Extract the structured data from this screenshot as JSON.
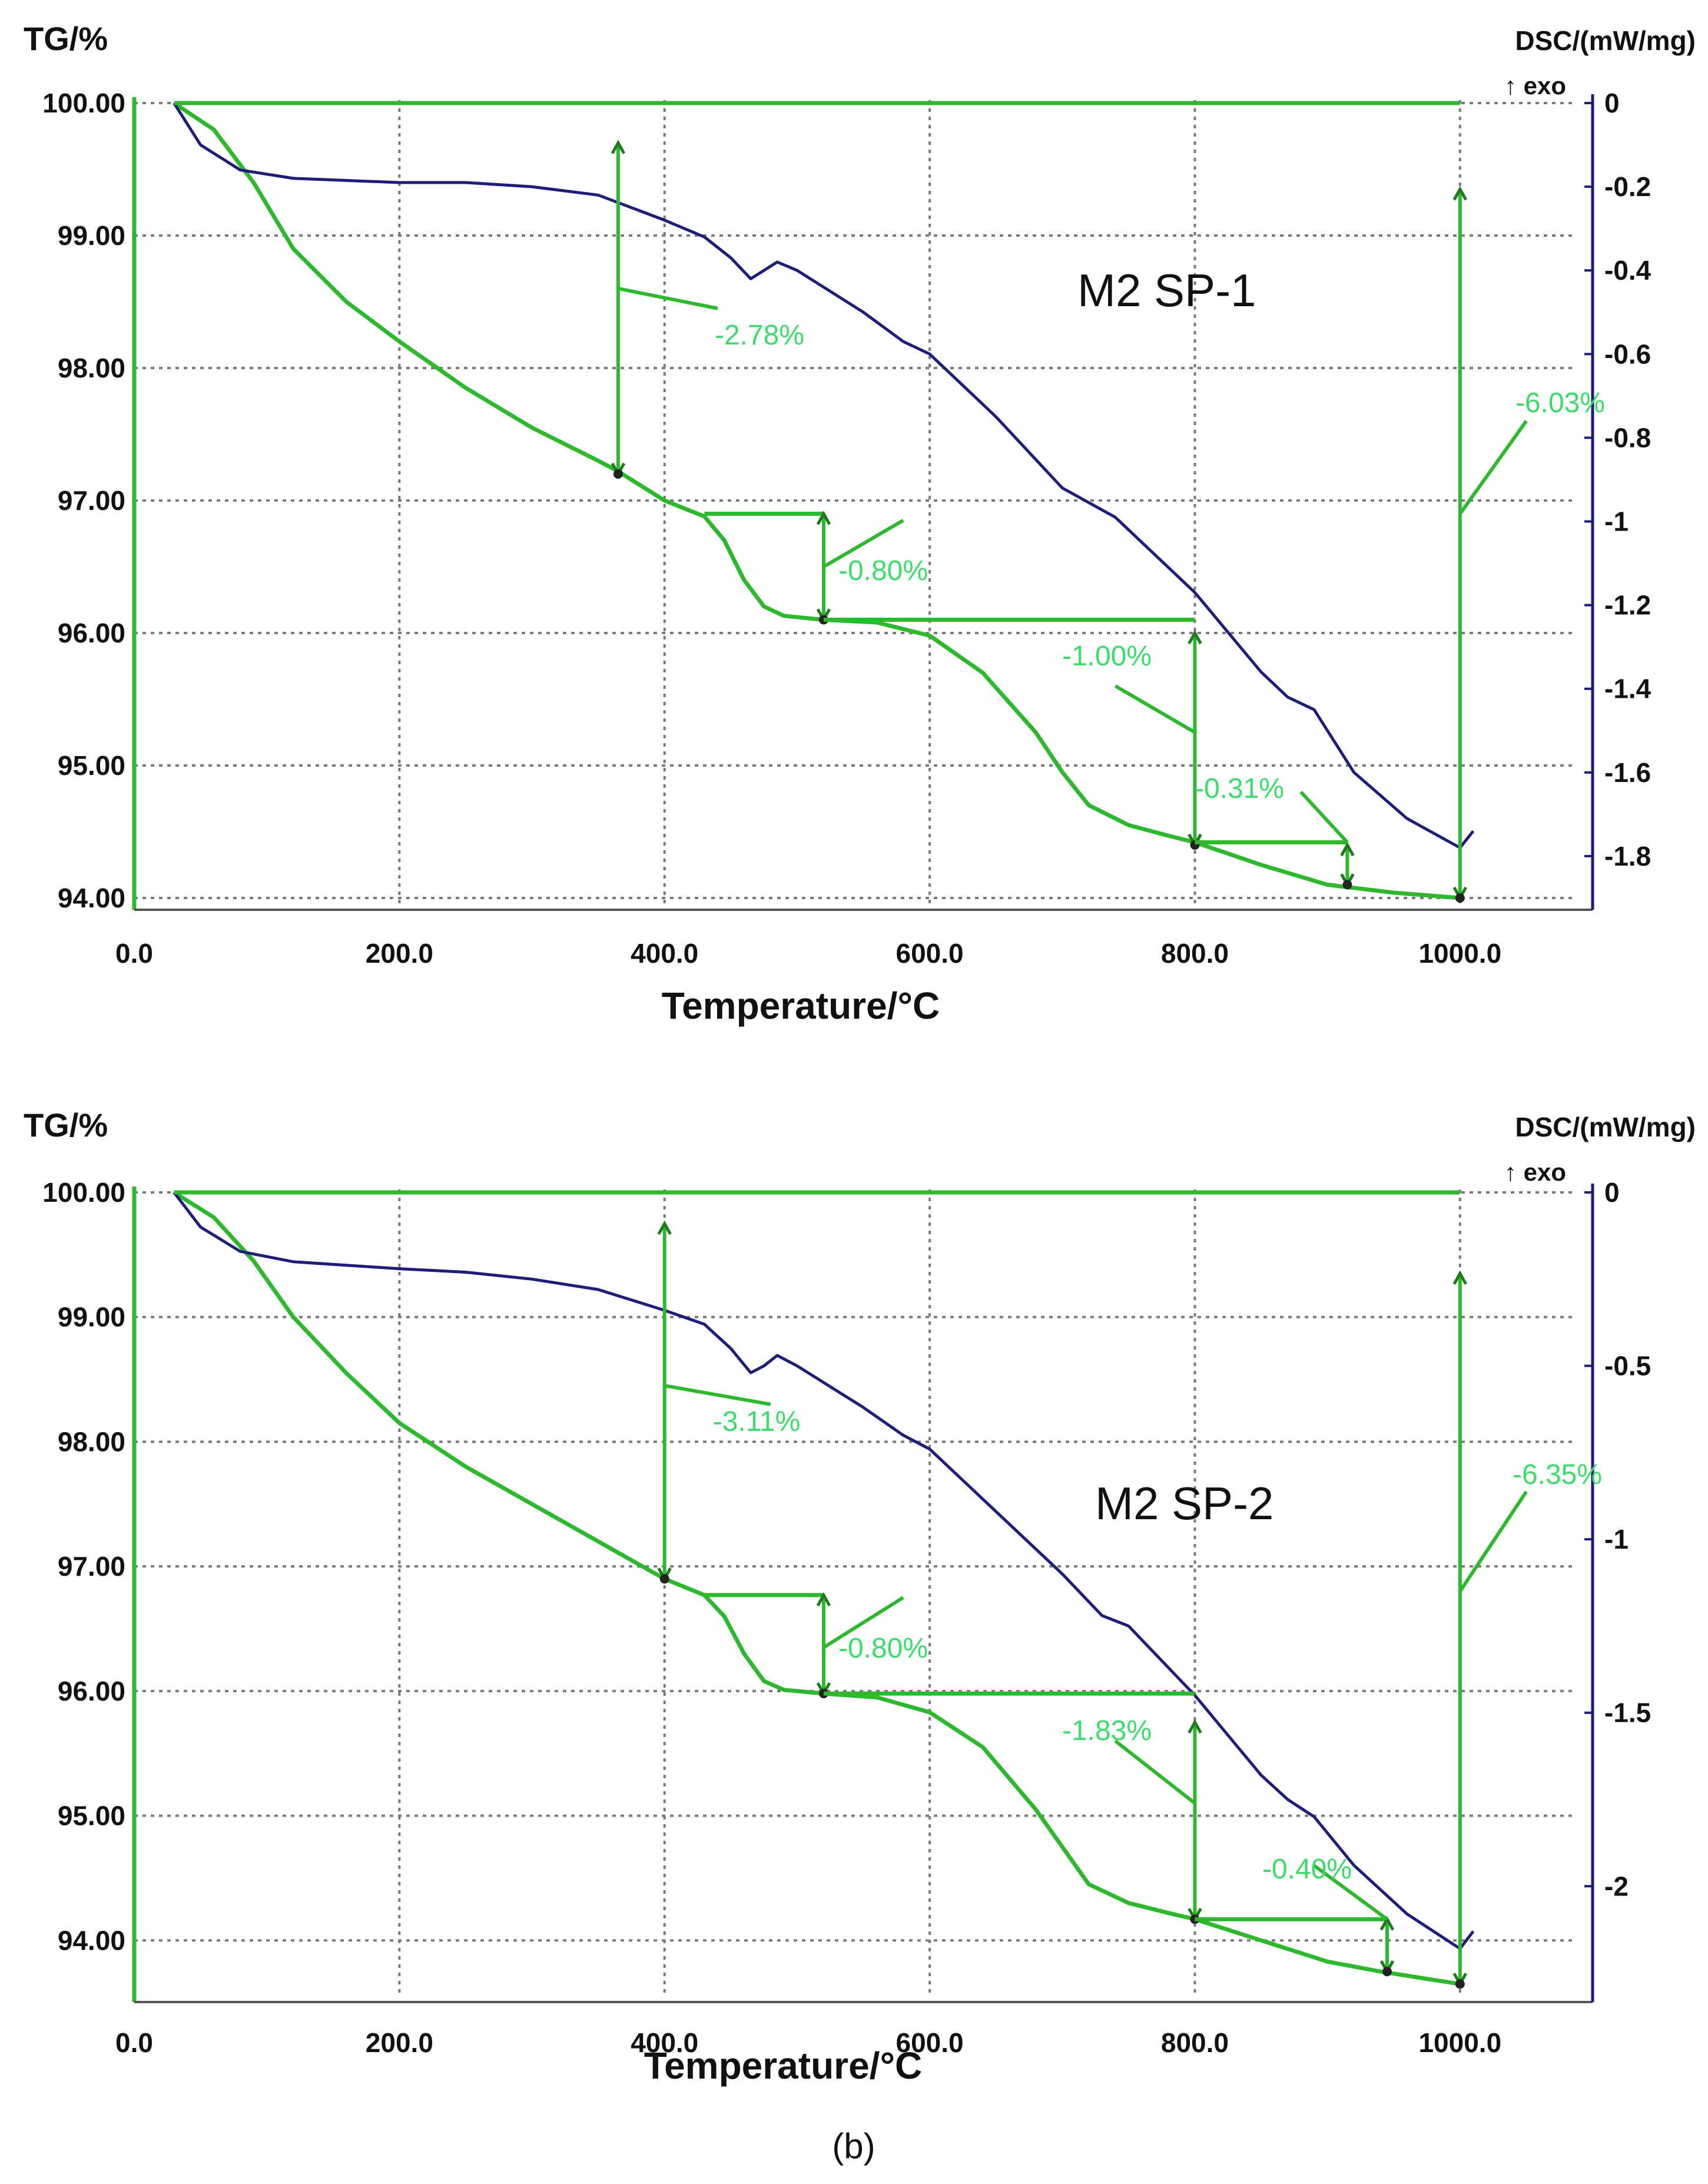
{
  "figure": {
    "label": "(b)"
  },
  "colors": {
    "tg": "#2eb82e",
    "tg_dark": "#1f7a1f",
    "dsc": "#1e1e7a",
    "annot": "#3ddc6a",
    "grid": "#7a7a7a"
  },
  "chart_data": [
    {
      "type": "line",
      "title": "M2 SP-1",
      "xlabel": "Temperature/°C",
      "ylabel_left": "TG/%",
      "ylabel_right": "DSC/(mW/mg)",
      "exo_label": "↑ exo",
      "xlim": [
        0,
        1100
      ],
      "ylim_left": [
        94.0,
        100.0
      ],
      "ylim_right": [
        -1.9,
        0
      ],
      "x_ticks": [
        0,
        200,
        400,
        600,
        800,
        1000
      ],
      "x_tick_labels": [
        "0.0",
        "200.0",
        "400.0",
        "600.0",
        "800.0",
        "1000.0"
      ],
      "y_left_ticks": [
        100,
        99,
        98,
        97,
        96,
        95,
        94
      ],
      "y_left_tick_labels": [
        "100.00",
        "99.00",
        "98.00",
        "97.00",
        "96.00",
        "95.00",
        "94.00"
      ],
      "y_right_ticks": [
        0,
        -0.2,
        -0.4,
        -0.6,
        -0.8,
        -1.0,
        -1.2,
        -1.4,
        -1.6,
        -1.8
      ],
      "y_right_tick_labels": [
        "0",
        "-0.2",
        "-0.4",
        "-0.6",
        "-0.8",
        "-1",
        "-1.2",
        "-1.4",
        "-1.6",
        "-1.8"
      ],
      "series": [
        {
          "name": "TG",
          "axis": "left",
          "x": [
            30,
            60,
            90,
            120,
            160,
            200,
            250,
            300,
            350,
            365,
            400,
            430,
            445,
            460,
            475,
            490,
            510,
            520,
            560,
            600,
            640,
            680,
            700,
            720,
            750,
            780,
            800,
            850,
            900,
            950,
            1000
          ],
          "y": [
            100.0,
            99.8,
            99.4,
            98.9,
            98.5,
            98.2,
            97.85,
            97.55,
            97.3,
            97.22,
            97.0,
            96.88,
            96.7,
            96.4,
            96.2,
            96.13,
            96.11,
            96.1,
            96.08,
            95.98,
            95.7,
            95.25,
            94.95,
            94.7,
            94.55,
            94.47,
            94.42,
            94.25,
            94.1,
            94.04,
            94.0
          ]
        },
        {
          "name": "DSC",
          "axis": "right",
          "x": [
            30,
            50,
            80,
            120,
            200,
            250,
            300,
            350,
            400,
            430,
            450,
            465,
            475,
            485,
            500,
            550,
            580,
            600,
            650,
            700,
            740,
            800,
            850,
            870,
            890,
            920,
            960,
            1000,
            1010
          ],
          "y": [
            0,
            -0.1,
            -0.16,
            -0.18,
            -0.19,
            -0.19,
            -0.2,
            -0.22,
            -0.28,
            -0.32,
            -0.37,
            -0.42,
            -0.4,
            -0.38,
            -0.4,
            -0.5,
            -0.57,
            -0.6,
            -0.75,
            -0.92,
            -0.99,
            -1.17,
            -1.36,
            -1.42,
            -1.45,
            -1.6,
            -1.71,
            -1.78,
            -1.74
          ]
        }
      ],
      "annotations": [
        "-2.78%",
        "-0.80%",
        "-1.00%",
        "-0.31%",
        "-6.03%"
      ]
    },
    {
      "type": "line",
      "title": "M2 SP-2",
      "xlabel": "Temperature/°C",
      "ylabel_left": "TG/%",
      "ylabel_right": "DSC/(mW/mg)",
      "exo_label": "↑ exo",
      "xlim": [
        0,
        1100
      ],
      "ylim_left": [
        93.6,
        100.0
      ],
      "ylim_right": [
        -2.3,
        0
      ],
      "x_ticks": [
        0,
        200,
        400,
        600,
        800,
        1000
      ],
      "x_tick_labels": [
        "0.0",
        "200.0",
        "400.0",
        "600.0",
        "800.0",
        "1000.0"
      ],
      "y_left_ticks": [
        100,
        99,
        98,
        97,
        96,
        95,
        94
      ],
      "y_left_tick_labels": [
        "100.00",
        "99.00",
        "98.00",
        "97.00",
        "96.00",
        "95.00",
        "94.00"
      ],
      "y_right_ticks": [
        0,
        -0.5,
        -1.0,
        -1.5,
        -2.0
      ],
      "y_right_tick_labels": [
        "0",
        "-0.5",
        "-1",
        "-1.5",
        "-2"
      ],
      "series": [
        {
          "name": "TG",
          "axis": "left",
          "x": [
            30,
            60,
            90,
            120,
            160,
            200,
            250,
            300,
            350,
            400,
            430,
            445,
            460,
            475,
            490,
            510,
            520,
            560,
            600,
            640,
            680,
            700,
            720,
            750,
            780,
            800,
            850,
            900,
            940,
            1000
          ],
          "y": [
            100.0,
            99.8,
            99.45,
            99.0,
            98.55,
            98.15,
            97.8,
            97.5,
            97.2,
            96.9,
            96.77,
            96.6,
            96.3,
            96.08,
            96.01,
            95.99,
            95.98,
            95.95,
            95.83,
            95.55,
            95.05,
            94.75,
            94.45,
            94.3,
            94.22,
            94.17,
            94.0,
            93.83,
            93.75,
            93.65
          ]
        },
        {
          "name": "DSC",
          "axis": "right",
          "x": [
            30,
            50,
            80,
            120,
            200,
            250,
            300,
            350,
            400,
            430,
            450,
            465,
            475,
            485,
            500,
            550,
            580,
            600,
            650,
            700,
            730,
            750,
            800,
            850,
            870,
            890,
            920,
            960,
            1000,
            1010
          ],
          "y": [
            0,
            -0.1,
            -0.17,
            -0.2,
            -0.22,
            -0.23,
            -0.25,
            -0.28,
            -0.34,
            -0.38,
            -0.45,
            -0.52,
            -0.5,
            -0.47,
            -0.5,
            -0.62,
            -0.7,
            -0.74,
            -0.92,
            -1.1,
            -1.22,
            -1.25,
            -1.45,
            -1.68,
            -1.75,
            -1.8,
            -1.94,
            -2.08,
            -2.18,
            -2.13
          ]
        }
      ],
      "annotations": [
        "-3.11%",
        "-0.80%",
        "-1.83%",
        "-0.40%",
        "-6.35%"
      ]
    }
  ]
}
